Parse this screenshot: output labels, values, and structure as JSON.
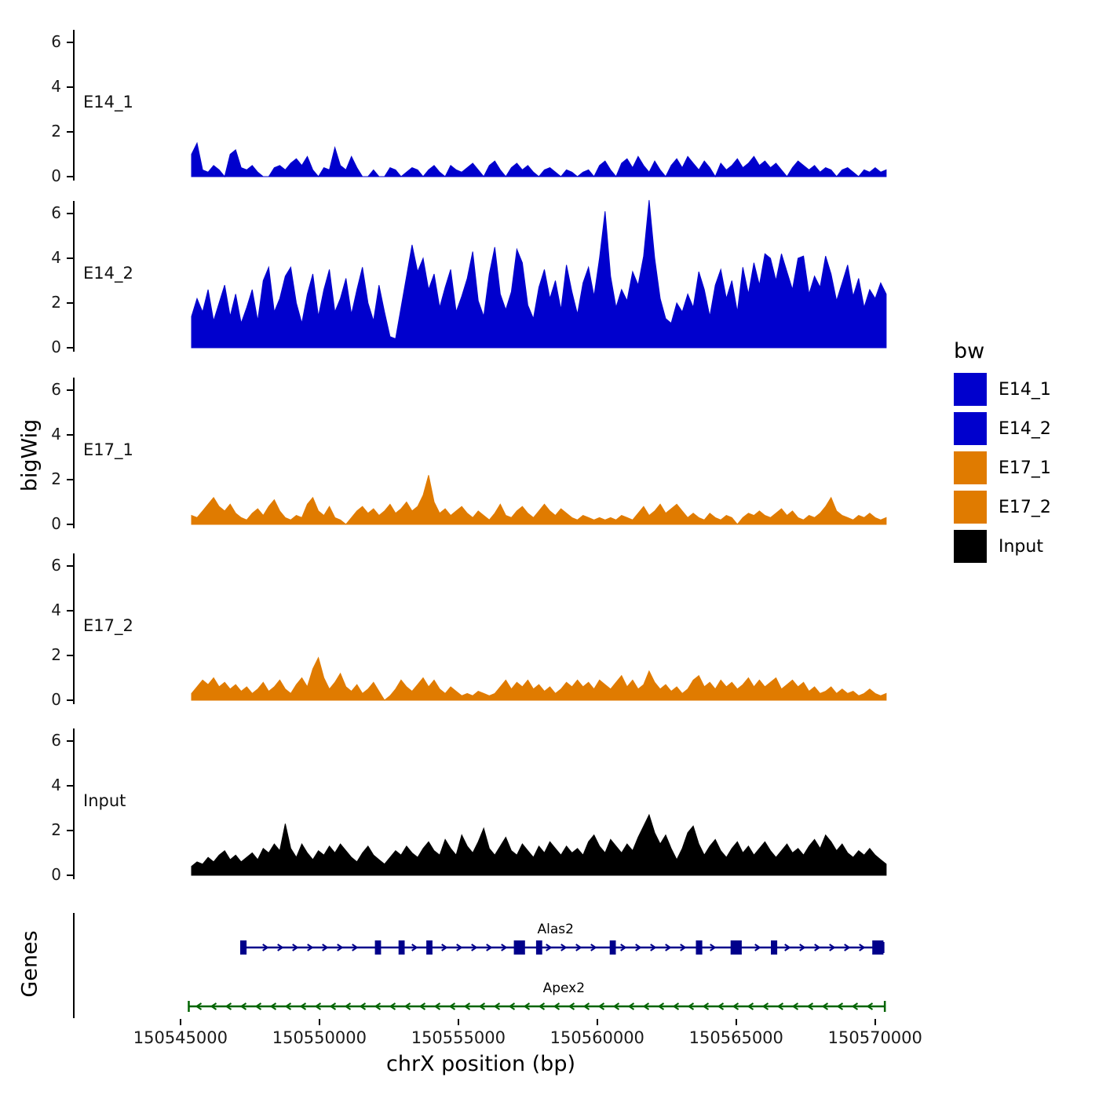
{
  "figure": {
    "y_axis_title": "bigWig",
    "genes_axis_title": "Genes",
    "x_axis_title": "chrX position (bp)"
  },
  "legend": {
    "title": "bw",
    "entries": [
      {
        "label": "E14_1",
        "color": "#0000CD"
      },
      {
        "label": "E14_2",
        "color": "#0000CD"
      },
      {
        "label": "E17_1",
        "color": "#E07B00"
      },
      {
        "label": "E17_2",
        "color": "#E07B00"
      },
      {
        "label": "Input",
        "color": "#000000"
      }
    ]
  },
  "chart_data": {
    "type": "area",
    "title": "",
    "xlabel": "chrX position (bp)",
    "ylabel": "bigWig",
    "x_view": [
      150541190,
      150570430
    ],
    "x_data": [
      150545400,
      150570400
    ],
    "x_ticks": [
      150545000,
      150550000,
      150555000,
      150560000,
      150565000,
      150570000
    ],
    "y_ticks": [
      0,
      2,
      4,
      6
    ],
    "ylim": [
      0,
      7
    ],
    "tracks": [
      {
        "name": "E14_1",
        "color": "#0000CD",
        "values": [
          1.0,
          1.5,
          0.3,
          0.2,
          0.5,
          0.3,
          0,
          1.0,
          1.2,
          0.4,
          0.3,
          0.5,
          0.2,
          0,
          0,
          0.4,
          0.5,
          0.3,
          0.6,
          0.8,
          0.5,
          0.9,
          0.3,
          0,
          0.4,
          0.3,
          1.3,
          0.5,
          0.3,
          0.9,
          0.4,
          0,
          0,
          0.3,
          0,
          0,
          0.4,
          0.3,
          0,
          0.2,
          0.4,
          0.3,
          0,
          0.3,
          0.5,
          0.2,
          0,
          0.5,
          0.3,
          0.2,
          0.4,
          0.6,
          0.3,
          0,
          0.5,
          0.7,
          0.3,
          0,
          0.4,
          0.6,
          0.3,
          0.5,
          0.2,
          0,
          0.3,
          0.4,
          0.2,
          0,
          0.3,
          0.2,
          0,
          0.2,
          0.3,
          0,
          0.5,
          0.7,
          0.3,
          0,
          0.6,
          0.8,
          0.4,
          0.9,
          0.5,
          0.2,
          0.7,
          0.3,
          0,
          0.5,
          0.8,
          0.4,
          0.9,
          0.6,
          0.3,
          0.7,
          0.4,
          0,
          0.6,
          0.3,
          0.5,
          0.8,
          0.4,
          0.6,
          0.9,
          0.5,
          0.7,
          0.4,
          0.6,
          0.3,
          0,
          0.4,
          0.7,
          0.5,
          0.3,
          0.5,
          0.2,
          0.4,
          0.3,
          0,
          0.3,
          0.4,
          0.2,
          0,
          0.3,
          0.2,
          0.4,
          0.2,
          0.3
        ]
      },
      {
        "name": "E14_2",
        "color": "#0000CD",
        "values": [
          1.4,
          2.2,
          1.6,
          2.6,
          1.2,
          2.0,
          2.8,
          1.4,
          2.4,
          1.1,
          1.8,
          2.6,
          1.2,
          3.0,
          3.6,
          1.6,
          2.2,
          3.2,
          3.6,
          2.0,
          1.1,
          2.4,
          3.3,
          1.4,
          2.6,
          3.5,
          1.6,
          2.2,
          3.1,
          1.5,
          2.6,
          3.6,
          2.0,
          1.2,
          2.8,
          1.6,
          0.5,
          0.4,
          1.8,
          3.2,
          4.6,
          3.4,
          4.0,
          2.6,
          3.3,
          1.8,
          2.7,
          3.5,
          1.6,
          2.3,
          3.1,
          4.3,
          2.1,
          1.4,
          3.3,
          4.5,
          2.4,
          1.7,
          2.5,
          4.4,
          3.8,
          1.9,
          1.3,
          2.7,
          3.5,
          2.2,
          3.0,
          1.7,
          3.7,
          2.5,
          1.5,
          2.9,
          3.6,
          2.3,
          4.0,
          6.1,
          3.2,
          1.8,
          2.6,
          2.1,
          3.4,
          2.8,
          4.1,
          6.6,
          4.0,
          2.2,
          1.3,
          1.1,
          2.0,
          1.6,
          2.4,
          1.8,
          3.4,
          2.6,
          1.4,
          2.8,
          3.5,
          2.2,
          3.0,
          1.6,
          3.6,
          2.4,
          3.8,
          2.8,
          4.2,
          4.0,
          3.0,
          4.2,
          3.4,
          2.6,
          4.0,
          4.1,
          2.4,
          3.2,
          2.7,
          4.1,
          3.3,
          2.1,
          2.9,
          3.7,
          2.3,
          3.1,
          1.8,
          2.6,
          2.2,
          2.9,
          2.4
        ]
      },
      {
        "name": "E17_1",
        "color": "#E07B00",
        "values": [
          0.4,
          0.3,
          0.6,
          0.9,
          1.2,
          0.8,
          0.6,
          0.9,
          0.5,
          0.3,
          0.2,
          0.5,
          0.7,
          0.4,
          0.8,
          1.1,
          0.6,
          0.3,
          0.2,
          0.4,
          0.3,
          0.9,
          1.2,
          0.6,
          0.4,
          0.8,
          0.3,
          0.2,
          0,
          0.3,
          0.6,
          0.8,
          0.5,
          0.7,
          0.4,
          0.6,
          0.9,
          0.5,
          0.7,
          1.0,
          0.6,
          0.8,
          1.3,
          2.2,
          1.0,
          0.5,
          0.7,
          0.4,
          0.6,
          0.8,
          0.5,
          0.3,
          0.6,
          0.4,
          0.2,
          0.5,
          0.9,
          0.4,
          0.3,
          0.6,
          0.8,
          0.5,
          0.3,
          0.6,
          0.9,
          0.6,
          0.4,
          0.7,
          0.5,
          0.3,
          0.2,
          0.4,
          0.3,
          0.2,
          0.3,
          0.2,
          0.3,
          0.2,
          0.4,
          0.3,
          0.2,
          0.5,
          0.8,
          0.4,
          0.6,
          0.9,
          0.5,
          0.7,
          0.9,
          0.6,
          0.3,
          0.5,
          0.3,
          0.2,
          0.5,
          0.3,
          0.2,
          0.4,
          0.3,
          0,
          0.3,
          0.5,
          0.4,
          0.6,
          0.4,
          0.3,
          0.5,
          0.7,
          0.4,
          0.6,
          0.3,
          0.2,
          0.4,
          0.3,
          0.5,
          0.8,
          1.2,
          0.6,
          0.4,
          0.3,
          0.2,
          0.4,
          0.3,
          0.5,
          0.3,
          0.2,
          0.3
        ]
      },
      {
        "name": "E17_2",
        "color": "#E07B00",
        "values": [
          0.3,
          0.6,
          0.9,
          0.7,
          1.0,
          0.6,
          0.8,
          0.5,
          0.7,
          0.4,
          0.6,
          0.3,
          0.5,
          0.8,
          0.4,
          0.6,
          0.9,
          0.5,
          0.3,
          0.7,
          1.0,
          0.6,
          1.4,
          1.9,
          1.0,
          0.5,
          0.8,
          1.2,
          0.6,
          0.4,
          0.7,
          0.3,
          0.5,
          0.8,
          0.4,
          0,
          0.2,
          0.5,
          0.9,
          0.6,
          0.4,
          0.7,
          1.0,
          0.6,
          0.9,
          0.5,
          0.3,
          0.6,
          0.4,
          0.2,
          0.3,
          0.2,
          0.4,
          0.3,
          0.2,
          0.3,
          0.6,
          0.9,
          0.5,
          0.8,
          0.6,
          0.9,
          0.5,
          0.7,
          0.4,
          0.6,
          0.3,
          0.5,
          0.8,
          0.6,
          0.9,
          0.6,
          0.8,
          0.5,
          0.9,
          0.7,
          0.5,
          0.8,
          1.1,
          0.6,
          0.9,
          0.5,
          0.7,
          1.3,
          0.8,
          0.5,
          0.7,
          0.4,
          0.6,
          0.3,
          0.5,
          0.9,
          1.1,
          0.6,
          0.8,
          0.5,
          0.9,
          0.6,
          0.8,
          0.5,
          0.7,
          1.0,
          0.6,
          0.9,
          0.6,
          0.8,
          1.0,
          0.5,
          0.7,
          0.9,
          0.6,
          0.8,
          0.4,
          0.6,
          0.3,
          0.4,
          0.6,
          0.3,
          0.5,
          0.3,
          0.4,
          0.2,
          0.3,
          0.5,
          0.3,
          0.2,
          0.3
        ]
      },
      {
        "name": "Input",
        "color": "#000000",
        "values": [
          0.4,
          0.6,
          0.5,
          0.8,
          0.6,
          0.9,
          1.1,
          0.7,
          0.9,
          0.6,
          0.8,
          1.0,
          0.7,
          1.2,
          1.0,
          1.4,
          1.1,
          2.3,
          1.2,
          0.8,
          1.4,
          1.0,
          0.7,
          1.1,
          0.9,
          1.3,
          1.0,
          1.4,
          1.1,
          0.8,
          0.6,
          1.0,
          1.3,
          0.9,
          0.7,
          0.5,
          0.8,
          1.1,
          0.9,
          1.3,
          1.0,
          0.8,
          1.2,
          1.5,
          1.1,
          0.9,
          1.6,
          1.2,
          0.9,
          1.8,
          1.3,
          1.0,
          1.5,
          2.1,
          1.2,
          0.9,
          1.3,
          1.7,
          1.1,
          0.9,
          1.4,
          1.1,
          0.8,
          1.3,
          1.0,
          1.5,
          1.2,
          0.9,
          1.3,
          1.0,
          1.2,
          0.9,
          1.5,
          1.8,
          1.3,
          1.0,
          1.6,
          1.3,
          1.0,
          1.4,
          1.1,
          1.7,
          2.2,
          2.7,
          1.9,
          1.4,
          1.8,
          1.2,
          0.7,
          1.2,
          1.9,
          2.2,
          1.4,
          0.9,
          1.3,
          1.6,
          1.1,
          0.8,
          1.2,
          1.5,
          1.0,
          1.3,
          0.9,
          1.2,
          1.5,
          1.1,
          0.8,
          1.1,
          1.4,
          1.0,
          1.2,
          0.9,
          1.3,
          1.6,
          1.2,
          1.8,
          1.5,
          1.1,
          1.4,
          1.0,
          0.8,
          1.1,
          0.9,
          1.2,
          0.9,
          0.7,
          0.5
        ]
      }
    ],
    "genes": [
      {
        "name": "Alas2",
        "color": "#00008B",
        "strand": "+",
        "start": 150547200,
        "end": 150570300,
        "label_bp": 150558500,
        "exons": [
          [
            150547150,
            150547380
          ],
          [
            150552000,
            150552220
          ],
          [
            150552850,
            150553070
          ],
          [
            150553850,
            150554070
          ],
          [
            150557000,
            150557400
          ],
          [
            150557800,
            150558020
          ],
          [
            150560450,
            150560670
          ],
          [
            150563550,
            150563780
          ],
          [
            150564800,
            150565200
          ],
          [
            150566250,
            150566480
          ],
          [
            150569900,
            150570300
          ]
        ]
      },
      {
        "name": "Apex2",
        "color": "#006400",
        "strand": "-",
        "start": 150545300,
        "end": 150570350,
        "label_bp": 150558800,
        "exons": []
      }
    ]
  }
}
